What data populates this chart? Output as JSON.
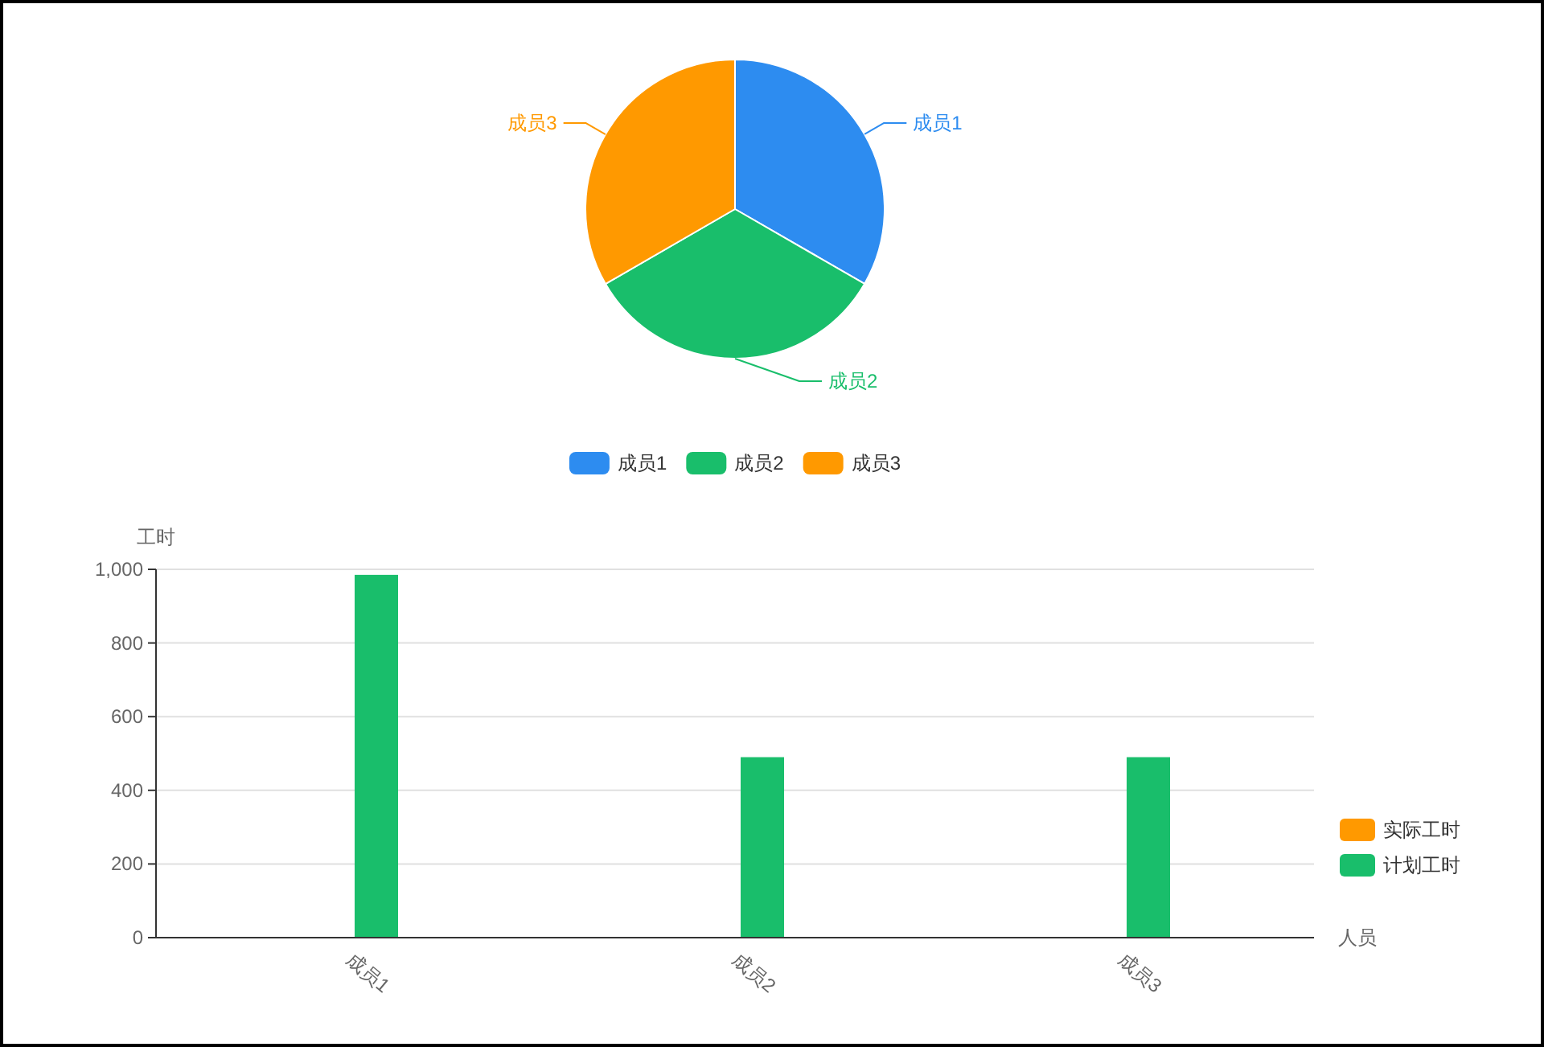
{
  "chart_data": [
    {
      "type": "pie",
      "categories": [
        "成员1",
        "成员2",
        "成员3"
      ],
      "values": [
        33.33,
        33.33,
        33.34
      ],
      "colors": [
        "#2d8cf0",
        "#19be6b",
        "#ff9900"
      ],
      "legend": "bottom"
    },
    {
      "type": "bar",
      "categories": [
        "成员1",
        "成员2",
        "成员3"
      ],
      "series": [
        {
          "name": "实际工时",
          "color": "#ff9900",
          "values": [
            0,
            0,
            0
          ]
        },
        {
          "name": "计划工时",
          "color": "#19be6b",
          "values": [
            985,
            490,
            490
          ]
        }
      ],
      "xlabel": "人员",
      "ylabel": "工时",
      "ylim": [
        0,
        1000
      ],
      "yticks": [
        0,
        200,
        400,
        600,
        800,
        {
          "value": 1000,
          "label": "1,000"
        }
      ],
      "grid": "y",
      "legend": "right"
    }
  ]
}
